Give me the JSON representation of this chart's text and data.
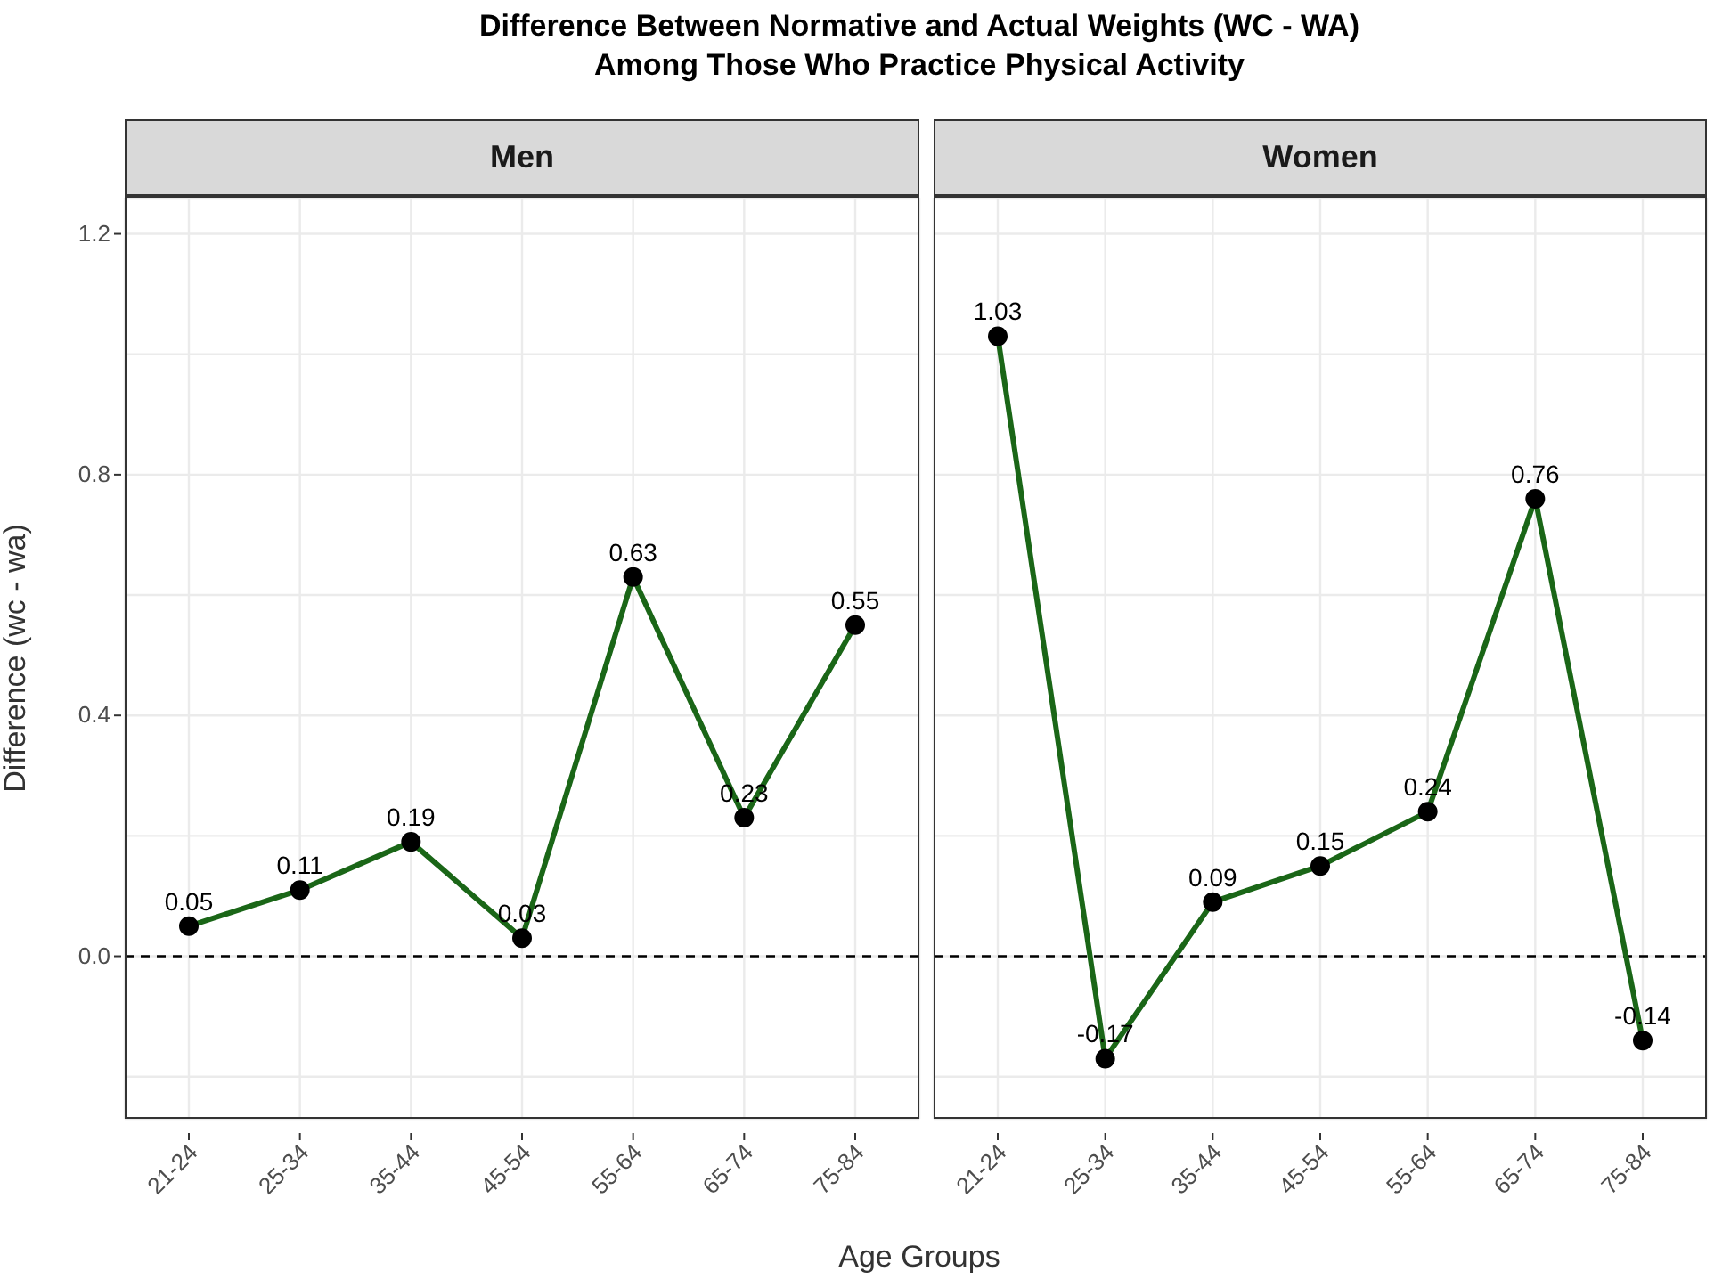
{
  "chart_data": [
    {
      "type": "line",
      "title": "Difference Between Normative and Actual Weights (WC - WA)\nAmong Those Who Practice Physical Activity",
      "subtitle": "Men",
      "xlabel": "Age Groups",
      "ylabel": "Difference (wc - wa)",
      "categories": [
        "21-24",
        "25-34",
        "35-44",
        "45-54",
        "55-64",
        "65-74",
        "75-84"
      ],
      "series": [
        {
          "color": "#1a6617",
          "values": [
            0.05,
            0.11,
            0.19,
            0.03,
            0.63,
            0.23,
            0.55
          ]
        }
      ],
      "ylim": [
        -0.27,
        1.26
      ],
      "yticks": [
        {
          "value": -0.2,
          "label": null
        },
        {
          "value": 0,
          "label": "0.0"
        },
        {
          "value": 0.2,
          "label": null
        },
        {
          "value": 0.4,
          "label": "0.4"
        },
        {
          "value": 0.6,
          "label": null
        },
        {
          "value": 0.8,
          "label": "0.8"
        },
        {
          "value": 1.0,
          "label": null
        },
        {
          "value": 1.2,
          "label": "1.2"
        }
      ],
      "ref_lines": [
        {
          "axis": "y",
          "value": 0,
          "label": null,
          "color": "#000000",
          "line_style": "dashed"
        }
      ],
      "grid": true,
      "marker": "circle",
      "line_style": "solid",
      "data_labels": true,
      "legend": false
    },
    {
      "type": "line",
      "subtitle": "Women",
      "categories": [
        "21-24",
        "25-34",
        "35-44",
        "45-54",
        "55-64",
        "65-74",
        "75-84"
      ],
      "series": [
        {
          "color": "#1a6617",
          "values": [
            1.03,
            -0.17,
            0.09,
            0.15,
            0.24,
            0.76,
            -0.14
          ]
        }
      ],
      "ylim": [
        -0.27,
        1.26
      ],
      "yticks": [
        {
          "value": -0.2,
          "label": null
        },
        {
          "value": 0,
          "label": null
        },
        {
          "value": 0.2,
          "label": null
        },
        {
          "value": 0.4,
          "label": null
        },
        {
          "value": 0.6,
          "label": null
        },
        {
          "value": 0.8,
          "label": null
        },
        {
          "value": 1.0,
          "label": null
        },
        {
          "value": 1.2,
          "label": null
        }
      ],
      "ref_lines": [
        {
          "axis": "y",
          "value": 0,
          "label": null,
          "color": "#000000",
          "line_style": "dashed"
        }
      ],
      "grid": true,
      "marker": "circle",
      "line_style": "solid",
      "data_labels": true,
      "legend": false,
      "tick_labels": "x"
    }
  ]
}
